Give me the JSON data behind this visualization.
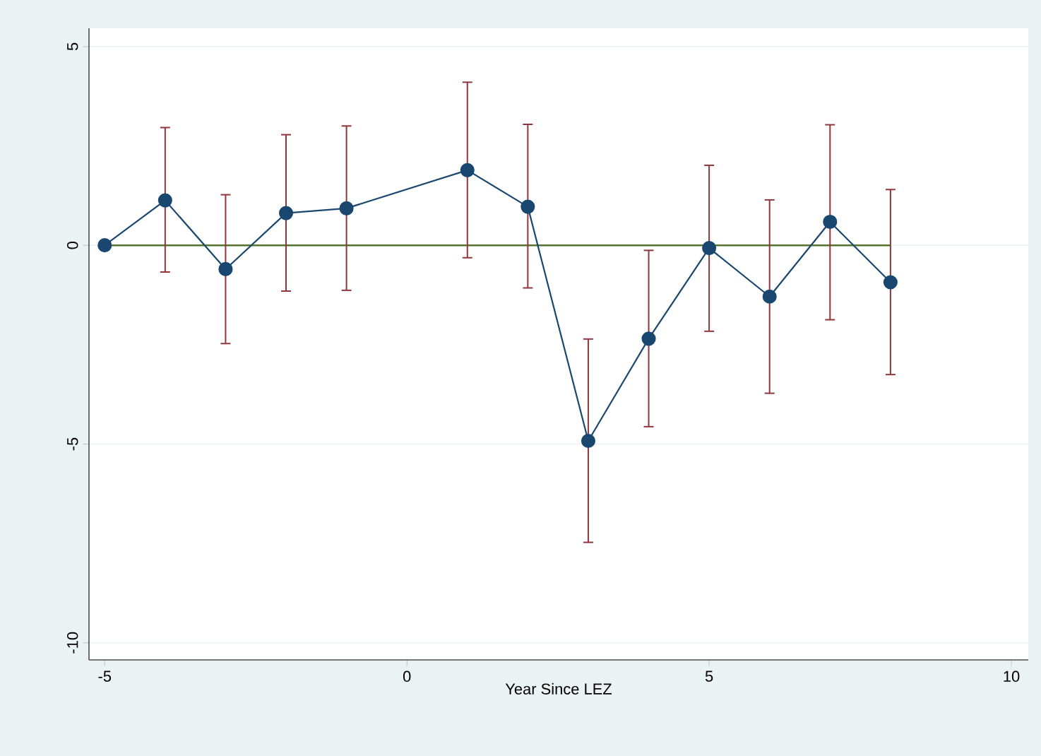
{
  "chart_data": {
    "type": "line",
    "xlabel": "Year Since LEZ",
    "x": [
      -5,
      -4,
      -3,
      -2,
      -1,
      1,
      2,
      3,
      4,
      5,
      6,
      7,
      8
    ],
    "series": [
      {
        "color": "#1a476f",
        "values": [
          0,
          1.13,
          -0.6,
          0.81,
          0.93,
          1.89,
          0.97,
          -4.92,
          -2.35,
          -0.07,
          -1.29,
          0.59,
          -0.93
        ],
        "errors": [
          null,
          [
            -0.69,
            2.98
          ],
          [
            -2.49,
            1.29
          ],
          [
            -1.17,
            2.8
          ],
          [
            -1.15,
            3.02
          ],
          [
            -0.33,
            4.12
          ],
          [
            -1.09,
            3.06
          ],
          [
            -7.49,
            -2.34
          ],
          [
            -4.58,
            -0.11
          ],
          [
            -2.18,
            2.03
          ],
          [
            -3.74,
            1.16
          ],
          [
            -1.89,
            3.05
          ],
          [
            -3.27,
            1.42
          ]
        ]
      }
    ],
    "ref_lines": [
      {
        "axis": "y",
        "value": 0,
        "color": "#55752f"
      }
    ],
    "xlim": [
      -5.26,
      10.28
    ],
    "ylim": [
      -10.43,
      5.46
    ],
    "xticks": [
      -5,
      0,
      5,
      10
    ],
    "yticks": [
      -10,
      -5,
      0,
      5
    ],
    "grid": "y",
    "marker": "circle",
    "line_style": "solid"
  }
}
